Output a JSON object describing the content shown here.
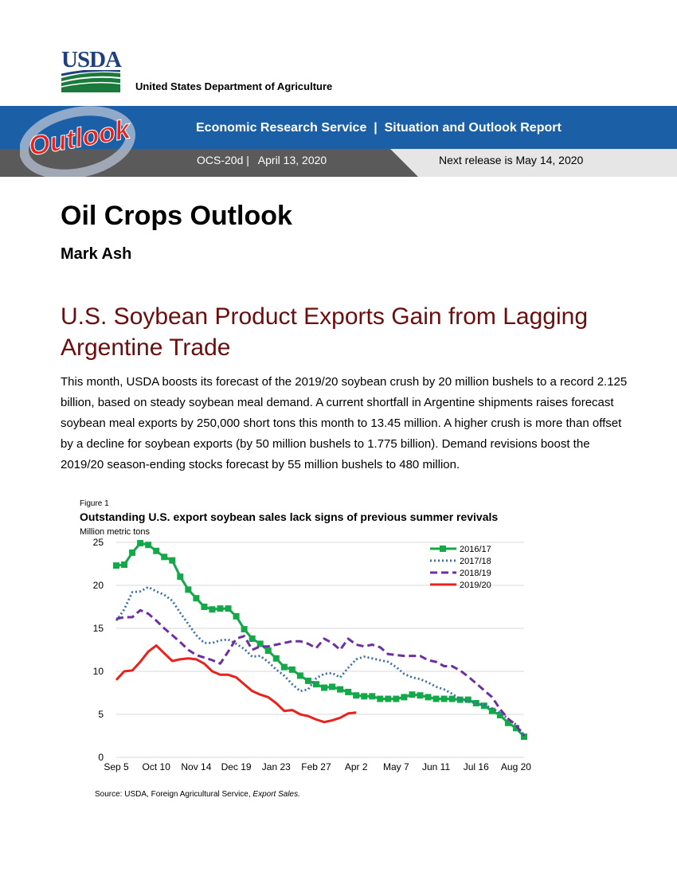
{
  "header": {
    "logo_text": "USDA",
    "agency": "United States Department of Agriculture"
  },
  "banner": {
    "outlook_word": "Outlook",
    "title": "Economic Research Service  |  Situation and Outlook Report",
    "issue": "OCS-20d |   April 13, 2020",
    "next_release": "Next release is May 14, 2020",
    "colors": {
      "blue": "#1b5fa6",
      "dark": "#5a5a5a",
      "light": "#e6e6e6",
      "red": "#e8231d"
    }
  },
  "document": {
    "title": "Oil Crops Outlook",
    "author": "Mark Ash",
    "section_heading": "U.S. Soybean Product Exports Gain from Lagging Argentine Trade",
    "paragraph": "This month, USDA boosts its forecast of the 2019/20 soybean crush by 20 million bushels to a record 2.125 billion, based on steady soybean meal demand. A current shortfall in Argentine shipments raises forecast soybean meal exports by 250,000 short tons this month to 13.45 million. A higher crush is more than offset by a decline for soybean exports (by 50 million bushels to 1.775 billion). Demand revisions boost the 2019/20 season-ending stocks forecast by 55 million bushels to 480 million."
  },
  "figure": {
    "label": "Figure 1",
    "source_prefix": "Source: USDA, Foreign Agricultural Service, ",
    "source_italic": "Export Sales."
  },
  "chart_data": {
    "type": "line",
    "title": "Outstanding U.S. export soybean sales lack signs of previous summer revivals",
    "ylabel": "Million metric tons",
    "ylim": [
      0,
      25
    ],
    "yticks": [
      0,
      5,
      10,
      15,
      20,
      25
    ],
    "x_tick_labels": [
      "Sep 5",
      "Oct 10",
      "Nov 14",
      "Dec 19",
      "Jan 23",
      "Feb 27",
      "Apr 2",
      "May 7",
      "Jun 11",
      "Jul 16",
      "Aug 20"
    ],
    "x_tick_weeks": [
      0,
      5,
      10,
      15,
      20,
      25,
      30,
      35,
      40,
      45,
      50
    ],
    "legend_position": "top-right",
    "grid": "horizontal",
    "series": [
      {
        "name": "2016/17",
        "color": "#15a84a",
        "style": "solid-marker",
        "values": [
          22.3,
          22.4,
          23.8,
          24.9,
          24.7,
          24.0,
          23.3,
          22.9,
          21.0,
          19.5,
          18.5,
          17.5,
          17.2,
          17.3,
          17.3,
          16.4,
          14.9,
          13.8,
          13.2,
          12.4,
          11.5,
          10.5,
          10.2,
          9.5,
          8.9,
          8.5,
          8.1,
          8.2,
          7.9,
          7.6,
          7.2,
          7.1,
          7.1,
          6.8,
          6.8,
          6.8,
          7.0,
          7.3,
          7.2,
          7.0,
          6.8,
          6.8,
          6.8,
          6.7,
          6.7,
          6.3,
          6.0,
          5.4,
          4.9,
          4.0,
          3.4,
          2.4
        ]
      },
      {
        "name": "2017/18",
        "color": "#3a6da8",
        "style": "dotted",
        "values": [
          15.9,
          17.2,
          19.2,
          19.3,
          19.8,
          19.3,
          18.9,
          18.2,
          16.8,
          15.5,
          14.2,
          13.3,
          13.3,
          13.6,
          13.7,
          13.2,
          12.6,
          11.7,
          11.8,
          11.1,
          10.2,
          9.5,
          8.5,
          7.7,
          7.9,
          9.2,
          9.7,
          9.8,
          9.3,
          10.4,
          11.4,
          11.7,
          11.5,
          11.3,
          11.1,
          10.5,
          9.7,
          9.3,
          9.1,
          8.7,
          8.2,
          7.9,
          7.4,
          6.8,
          6.5,
          6.3,
          6.1,
          5.7,
          5.2,
          4.5,
          3.8,
          2.6
        ]
      },
      {
        "name": "2018/19",
        "color": "#6e2fa0",
        "style": "dashed",
        "values": [
          16.1,
          16.3,
          16.3,
          17.1,
          16.7,
          15.9,
          15.0,
          14.2,
          13.4,
          12.5,
          11.9,
          11.6,
          11.3,
          10.9,
          12.3,
          13.8,
          14.1,
          12.5,
          12.9,
          12.9,
          13.1,
          13.3,
          13.5,
          13.5,
          13.2,
          12.7,
          13.8,
          13.3,
          12.5,
          13.8,
          13.1,
          12.9,
          13.1,
          12.8,
          12.0,
          11.9,
          11.8,
          11.8,
          11.8,
          11.3,
          11.1,
          10.6,
          10.6,
          10.1,
          9.4,
          8.6,
          7.8,
          7.0,
          5.6,
          4.5,
          3.7,
          2.5
        ]
      },
      {
        "name": "2019/20",
        "color": "#e8231d",
        "style": "solid",
        "values": [
          9.0,
          10.0,
          10.1,
          11.1,
          12.3,
          13.0,
          12.1,
          11.2,
          11.4,
          11.5,
          11.4,
          10.9,
          10.0,
          9.6,
          9.6,
          9.3,
          8.5,
          7.7,
          7.3,
          7.0,
          6.3,
          5.4,
          5.5,
          5.0,
          4.8,
          4.4,
          4.1,
          4.3,
          4.6,
          5.1,
          5.2
        ]
      }
    ]
  }
}
